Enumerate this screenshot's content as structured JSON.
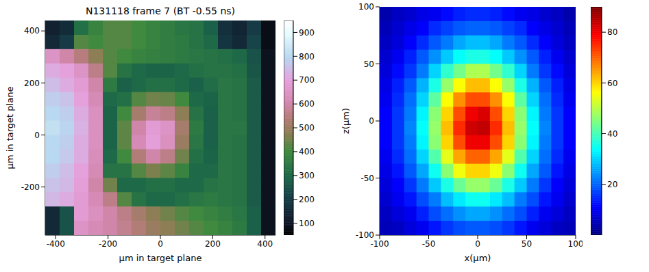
{
  "chart_data": [
    {
      "type": "heatmap",
      "title": "N131118 frame 7 (BT -0.55 ns)",
      "x_label": "μm in target plane",
      "y_label": "μm in target plane",
      "xlim": [
        -440,
        440
      ],
      "xticks": [
        -400,
        -200,
        0,
        200,
        400
      ],
      "ylim": [
        -385,
        440
      ],
      "yticks": [
        -200,
        0,
        200,
        400
      ],
      "x": [
        -412.5,
        -357.5,
        -302.5,
        -247.5,
        -192.5,
        -137.5,
        -82.5,
        -27.5,
        27.5,
        82.5,
        137.5,
        192.5,
        247.5,
        302.5,
        357.5,
        412.5
      ],
      "y": [
        412.5,
        357.5,
        302.5,
        247.5,
        192.5,
        137.5,
        82.5,
        27.5,
        -27.5,
        -82.5,
        -137.5,
        -192.5,
        -247.5,
        -302.5,
        -357.5
      ],
      "z": [
        [
          130,
          160,
          320,
          380,
          420,
          420,
          400,
          380,
          360,
          340,
          330,
          280,
          170,
          140,
          200,
          80
        ],
        [
          150,
          200,
          420,
          400,
          420,
          420,
          400,
          380,
          360,
          350,
          330,
          300,
          180,
          150,
          220,
          80
        ],
        [
          650,
          600,
          550,
          480,
          420,
          400,
          380,
          370,
          360,
          350,
          340,
          330,
          320,
          300,
          250,
          90
        ],
        [
          720,
          700,
          650,
          560,
          420,
          330,
          300,
          290,
          290,
          300,
          320,
          330,
          330,
          320,
          260,
          90
        ],
        [
          750,
          720,
          680,
          600,
          350,
          280,
          300,
          320,
          320,
          300,
          280,
          310,
          340,
          330,
          270,
          90
        ],
        [
          780,
          760,
          700,
          620,
          300,
          320,
          420,
          450,
          440,
          400,
          300,
          290,
          340,
          330,
          270,
          90
        ],
        [
          800,
          780,
          720,
          640,
          290,
          400,
          520,
          580,
          560,
          480,
          330,
          280,
          340,
          330,
          270,
          90
        ],
        [
          820,
          790,
          730,
          640,
          290,
          430,
          600,
          680,
          650,
          520,
          350,
          280,
          340,
          340,
          270,
          90
        ],
        [
          800,
          780,
          720,
          640,
          290,
          430,
          620,
          690,
          640,
          500,
          340,
          280,
          340,
          330,
          270,
          90
        ],
        [
          800,
          770,
          720,
          630,
          300,
          400,
          540,
          600,
          560,
          450,
          320,
          290,
          340,
          330,
          270,
          90
        ],
        [
          780,
          750,
          700,
          620,
          330,
          330,
          420,
          460,
          430,
          380,
          300,
          300,
          340,
          330,
          270,
          90
        ],
        [
          760,
          740,
          690,
          600,
          450,
          300,
          300,
          320,
          320,
          300,
          300,
          330,
          340,
          330,
          270,
          90
        ],
        [
          740,
          720,
          680,
          620,
          560,
          420,
          330,
          300,
          300,
          320,
          340,
          350,
          340,
          330,
          270,
          90
        ],
        [
          150,
          250,
          680,
          640,
          600,
          560,
          520,
          480,
          450,
          420,
          400,
          380,
          360,
          340,
          280,
          90
        ],
        [
          150,
          250,
          650,
          620,
          600,
          570,
          540,
          500,
          480,
          450,
          420,
          400,
          380,
          350,
          280,
          90
        ]
      ],
      "colorbar": {
        "range": [
          50,
          950
        ],
        "ticks": [
          100,
          200,
          300,
          400,
          500,
          600,
          700,
          800,
          900
        ]
      }
    },
    {
      "type": "heatmap",
      "x_label": "x(μm)",
      "y_label": "z(μm)",
      "xlim": [
        -100,
        100
      ],
      "xticks": [
        -100,
        -50,
        0,
        50,
        100
      ],
      "ylim": [
        -100,
        100
      ],
      "yticks": [
        -100,
        -50,
        0,
        50,
        100
      ],
      "x": [
        -93.75,
        -81.25,
        -68.75,
        -56.25,
        -43.75,
        -31.25,
        -18.75,
        -6.25,
        6.25,
        18.75,
        31.25,
        43.75,
        56.25,
        68.75,
        81.25,
        93.75
      ],
      "y": [
        93.75,
        81.25,
        68.75,
        56.25,
        43.75,
        31.25,
        18.75,
        6.25,
        -6.25,
        -18.75,
        -31.25,
        -43.75,
        -56.25,
        -68.75,
        -81.25,
        -93.75
      ],
      "z": [
        [
          4,
          6,
          7,
          9,
          10,
          12,
          14,
          15,
          15,
          14,
          12,
          10,
          9,
          7,
          6,
          4
        ],
        [
          5,
          7,
          9,
          11,
          15,
          17,
          19,
          20,
          20,
          19,
          17,
          15,
          11,
          9,
          7,
          5
        ],
        [
          6,
          8,
          11,
          15,
          19,
          22,
          26,
          28,
          28,
          26,
          22,
          19,
          15,
          11,
          8,
          6
        ],
        [
          7,
          10,
          14,
          19,
          24,
          29,
          34,
          36,
          36,
          34,
          29,
          24,
          19,
          14,
          10,
          7
        ],
        [
          8,
          12,
          16,
          22,
          30,
          38,
          44,
          49,
          49,
          44,
          38,
          30,
          22,
          16,
          12,
          8
        ],
        [
          9,
          14,
          19,
          27,
          36,
          47,
          56,
          62,
          62,
          56,
          47,
          36,
          27,
          19,
          14,
          9
        ],
        [
          10,
          15,
          21,
          30,
          42,
          56,
          66,
          72,
          72,
          66,
          56,
          42,
          30,
          21,
          15,
          10
        ],
        [
          11,
          16,
          22,
          33,
          46,
          60,
          72,
          80,
          82,
          72,
          60,
          46,
          33,
          22,
          16,
          11
        ],
        [
          11,
          16,
          23,
          34,
          47,
          62,
          75,
          83,
          84,
          75,
          62,
          47,
          34,
          23,
          16,
          11
        ],
        [
          11,
          16,
          22,
          33,
          46,
          60,
          72,
          80,
          80,
          72,
          60,
          46,
          33,
          22,
          16,
          11
        ],
        [
          10,
          15,
          21,
          30,
          41,
          54,
          64,
          70,
          70,
          64,
          54,
          41,
          30,
          21,
          15,
          10
        ],
        [
          9,
          13,
          19,
          26,
          35,
          46,
          55,
          60,
          60,
          55,
          46,
          35,
          26,
          19,
          13,
          9
        ],
        [
          8,
          11,
          16,
          22,
          29,
          36,
          43,
          47,
          47,
          43,
          36,
          29,
          22,
          16,
          11,
          8
        ],
        [
          7,
          10,
          13,
          18,
          22,
          28,
          32,
          35,
          35,
          32,
          28,
          22,
          18,
          13,
          10,
          7
        ],
        [
          6,
          8,
          10,
          14,
          18,
          21,
          24,
          26,
          26,
          24,
          21,
          18,
          14,
          10,
          8,
          6
        ],
        [
          5,
          6,
          8,
          10,
          13,
          16,
          18,
          19,
          19,
          18,
          16,
          13,
          10,
          8,
          6,
          5
        ]
      ],
      "colorbar": {
        "range": [
          0,
          90
        ],
        "ticks": [
          20,
          40,
          60,
          80
        ]
      }
    }
  ]
}
